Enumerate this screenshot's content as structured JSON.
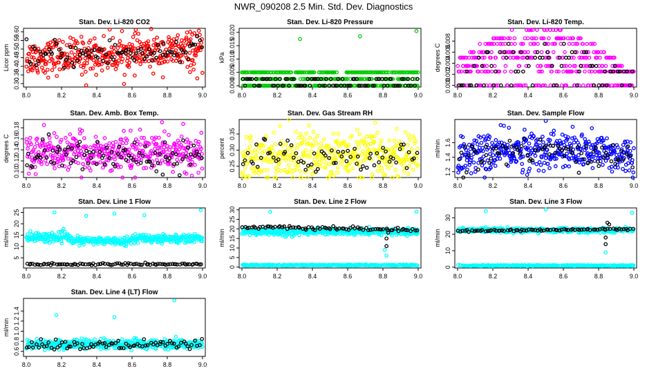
{
  "page_title": "NWR_090208  2.5 Min. Std. Dev. Diagnostics",
  "colors": {
    "red": "#ff0000",
    "green": "#00cc00",
    "magenta": "#ff00ff",
    "yellow": "#ffff00",
    "blue": "#0000ff",
    "cyan": "#00ffff",
    "black": "#000000"
  },
  "chart_data": [
    {
      "type": "scatter",
      "title": "Stan. Dev. Li-820 CO2",
      "ylabel": "Licor ppm",
      "xlim": [
        8.0,
        9.0
      ],
      "ylim": [
        0.28,
        0.62
      ],
      "xticks": [
        "8.0",
        "8.2",
        "8.4",
        "8.6",
        "8.8",
        "9.0"
      ],
      "yticks": [
        "0.30",
        "0.35",
        "0.40",
        "0.45",
        "0.50",
        "0.55",
        "0.60"
      ],
      "series": [
        {
          "name": "main",
          "color": "#ff0000",
          "n": 420,
          "center": 0.45,
          "spread": 0.05,
          "trend": 0.04,
          "outliers": [
            [
              8.34,
              0.29
            ],
            [
              8.97,
              0.33
            ],
            [
              8.93,
              0.6
            ],
            [
              8.86,
              0.58
            ]
          ]
        },
        {
          "name": "black",
          "color": "#000000",
          "n": 90,
          "center": 0.46,
          "spread": 0.04,
          "trend": 0.03
        }
      ]
    },
    {
      "type": "scatter",
      "title": "Stan. Dev. Li-820 Pressure",
      "ylabel": "kPa",
      "xlim": [
        8.0,
        9.0
      ],
      "ylim": [
        -0.0005,
        0.0215
      ],
      "xticks": [
        "8.0",
        "8.2",
        "8.4",
        "8.6",
        "8.8",
        "9.0"
      ],
      "yticks": [
        "0.000",
        "0.005",
        "0.010",
        "0.015",
        "0.020"
      ],
      "series": [
        {
          "name": "main",
          "color": "#00cc00",
          "n": 420,
          "levels": [
            0.0,
            0.0025,
            0.005
          ],
          "outliers": [
            [
              8.33,
              0.0175
            ],
            [
              8.67,
              0.0185
            ],
            [
              8.99,
              0.0205
            ]
          ]
        },
        {
          "name": "black",
          "color": "#000000",
          "n": 90,
          "levels": [
            0.0,
            0.0025
          ]
        }
      ]
    },
    {
      "type": "scatter",
      "title": "Stan. Dev. Li-820 Temp.",
      "ylabel": "degrees C",
      "xlim": [
        8.0,
        9.0
      ],
      "ylim": [
        -0.0003,
        0.0103
      ],
      "xticks": [
        "8.0",
        "8.2",
        "8.4",
        "8.6",
        "8.8",
        "9.0"
      ],
      "yticks": [
        "0.000",
        "0.002",
        "0.004",
        "0.006",
        "0.008"
      ],
      "series": [
        {
          "name": "main",
          "color": "#ff00ff",
          "n": 420,
          "levels": [
            0.0,
            0.0025,
            0.0035,
            0.005,
            0.006,
            0.0075,
            0.0085,
            0.01
          ],
          "hump": true
        },
        {
          "name": "black",
          "color": "#000000",
          "n": 70,
          "levels": [
            0.0,
            0.0025,
            0.0035,
            0.005,
            0.006,
            0.0075
          ],
          "hump": true
        }
      ]
    },
    {
      "type": "scatter",
      "title": "Stan. Dev. Amb. Box Temp.",
      "ylabel": "degrees C",
      "xlim": [
        8.0,
        9.0
      ],
      "ylim": [
        0.09,
        0.195
      ],
      "xticks": [
        "8.0",
        "8.2",
        "8.4",
        "8.6",
        "8.8",
        "9.0"
      ],
      "yticks": [
        "0.10",
        "0.12",
        "0.14",
        "0.16",
        "0.18"
      ],
      "series": [
        {
          "name": "main",
          "color": "#ff00ff",
          "n": 420,
          "center": 0.135,
          "spread": 0.016,
          "trend": 0,
          "outliers": [
            [
              8.77,
              0.19
            ],
            [
              8.1,
              0.185
            ]
          ]
        },
        {
          "name": "black",
          "color": "#000000",
          "n": 90,
          "center": 0.13,
          "spread": 0.014,
          "trend": 0
        }
      ]
    },
    {
      "type": "scatter",
      "title": "Stan. Dev. Gas Stream RH",
      "ylabel": "percent",
      "xlim": [
        8.0,
        9.0
      ],
      "ylim": [
        0.215,
        0.395
      ],
      "xticks": [
        "8.0",
        "8.2",
        "8.4",
        "8.6",
        "8.8",
        "9.0"
      ],
      "yticks": [
        "0.25",
        "0.30",
        "0.35"
      ],
      "series": [
        {
          "name": "main",
          "color": "#ffff00",
          "n": 420,
          "center": 0.285,
          "spread": 0.035,
          "trend": 0
        },
        {
          "name": "black",
          "color": "#000000",
          "n": 70,
          "center": 0.28,
          "spread": 0.025,
          "trend": 0
        }
      ]
    },
    {
      "type": "scatter",
      "title": "Stan. Dev. Sample Flow",
      "ylabel": "ml/min",
      "xlim": [
        8.0,
        9.0
      ],
      "ylim": [
        1.12,
        1.92
      ],
      "xticks": [
        "8.0",
        "8.2",
        "8.4",
        "8.6",
        "8.8",
        "9.0"
      ],
      "yticks": [
        "1.2",
        "1.4",
        "1.6"
      ],
      "series": [
        {
          "name": "main",
          "color": "#0000ff",
          "n": 420,
          "center": 1.42,
          "spread": 0.13,
          "trend": 0,
          "hump": true,
          "outliers": [
            [
              8.5,
              1.9
            ],
            [
              8.38,
              1.78
            ]
          ]
        },
        {
          "name": "black",
          "color": "#000000",
          "n": 80,
          "center": 1.4,
          "spread": 0.11,
          "trend": 0,
          "hump": true
        }
      ]
    },
    {
      "type": "scatter",
      "title": "Stan. Dev. Line 1 Flow",
      "ylabel": "ml/min",
      "xlim": [
        8.0,
        9.0
      ],
      "ylim": [
        0.5,
        27
      ],
      "xticks": [
        "8.0",
        "8.2",
        "8.4",
        "8.6",
        "8.8",
        "9.0"
      ],
      "yticks": [
        "5",
        "10",
        "15",
        "20",
        "25"
      ],
      "series": [
        {
          "name": "main",
          "color": "#00ffff",
          "n": 420,
          "bands": [
            [
              8.0,
              8.25,
              14.0,
              1.0
            ],
            [
              8.25,
              8.6,
              12.5,
              0.8
            ],
            [
              8.6,
              9.0,
              13.5,
              1.0
            ]
          ],
          "outliers": [
            [
              8.16,
              25
            ],
            [
              8.34,
              23.5
            ],
            [
              8.5,
              24.5
            ],
            [
              8.67,
              23.8
            ],
            [
              8.99,
              26
            ]
          ]
        },
        {
          "name": "black",
          "color": "#000000",
          "n": 90,
          "center": 2.2,
          "spread": 0.2,
          "trend": 0
        }
      ]
    },
    {
      "type": "scatter",
      "title": "Stan. Dev. Line 2 Flow",
      "ylabel": "ml/min",
      "xlim": [
        8.0,
        9.0
      ],
      "ylim": [
        -0.5,
        31
      ],
      "xticks": [
        "8.0",
        "8.2",
        "8.4",
        "8.6",
        "8.8",
        "9.0"
      ],
      "yticks": [
        "0",
        "5",
        "10",
        "15",
        "20",
        "25",
        "30"
      ],
      "series": [
        {
          "name": "main",
          "color": "#00ffff",
          "n": 420,
          "center": 18.5,
          "spread": 0.9,
          "trend": 0,
          "lower": 1.0,
          "outliers": [
            [
              8.81,
              9
            ],
            [
              8.82,
              6
            ],
            [
              8.99,
              29
            ],
            [
              8.16,
              29
            ]
          ]
        },
        {
          "name": "black",
          "color": "#000000",
          "n": 80,
          "center": 21.0,
          "spread": 0.4,
          "trend": -1.5,
          "outliers": [
            [
              8.82,
              11
            ],
            [
              8.82,
              15
            ],
            [
              8.83,
              18
            ]
          ]
        }
      ]
    },
    {
      "type": "scatter",
      "title": "Stan. Dev. Line 3 Flow",
      "ylabel": "ml/min",
      "xlim": [
        8.0,
        9.0
      ],
      "ylim": [
        -0.5,
        36
      ],
      "xticks": [
        "8.0",
        "8.2",
        "8.4",
        "8.6",
        "8.8",
        "9.0"
      ],
      "yticks": [
        "0",
        "10",
        "20",
        "30"
      ],
      "series": [
        {
          "name": "main",
          "color": "#00ffff",
          "n": 420,
          "center": 22.5,
          "spread": 0.7,
          "trend": 0,
          "lower": 1.0,
          "outliers": [
            [
              8.16,
              34
            ],
            [
              8.5,
              35
            ],
            [
              8.99,
              33
            ],
            [
              8.84,
              9
            ]
          ]
        },
        {
          "name": "black",
          "color": "#000000",
          "n": 80,
          "center": 22.0,
          "spread": 0.3,
          "trend": 1.2,
          "outliers": [
            [
              8.84,
              14
            ],
            [
              8.84,
              18
            ],
            [
              8.85,
              27
            ],
            [
              8.86,
              26
            ]
          ]
        }
      ]
    },
    {
      "type": "scatter",
      "title": "Stan. Dev. Line 4 (LT) Flow",
      "ylabel": "ml/min",
      "xlim": [
        8.0,
        9.0
      ],
      "ylim": [
        0.5,
        1.65
      ],
      "xticks": [
        "8.0",
        "8.2",
        "8.4",
        "8.6",
        "8.8",
        "9.0"
      ],
      "yticks": [
        "0.6",
        "0.8",
        "1.0",
        "1.2",
        "1.4"
      ],
      "series": [
        {
          "name": "main",
          "color": "#00ffff",
          "n": 420,
          "center": 0.74,
          "spread": 0.05,
          "trend": 0,
          "outliers": [
            [
              8.17,
              1.32
            ],
            [
              8.5,
              1.28
            ],
            [
              8.84,
              1.61
            ]
          ]
        },
        {
          "name": "black",
          "color": "#000000",
          "n": 80,
          "center": 0.72,
          "spread": 0.05,
          "trend": 0
        }
      ]
    }
  ]
}
